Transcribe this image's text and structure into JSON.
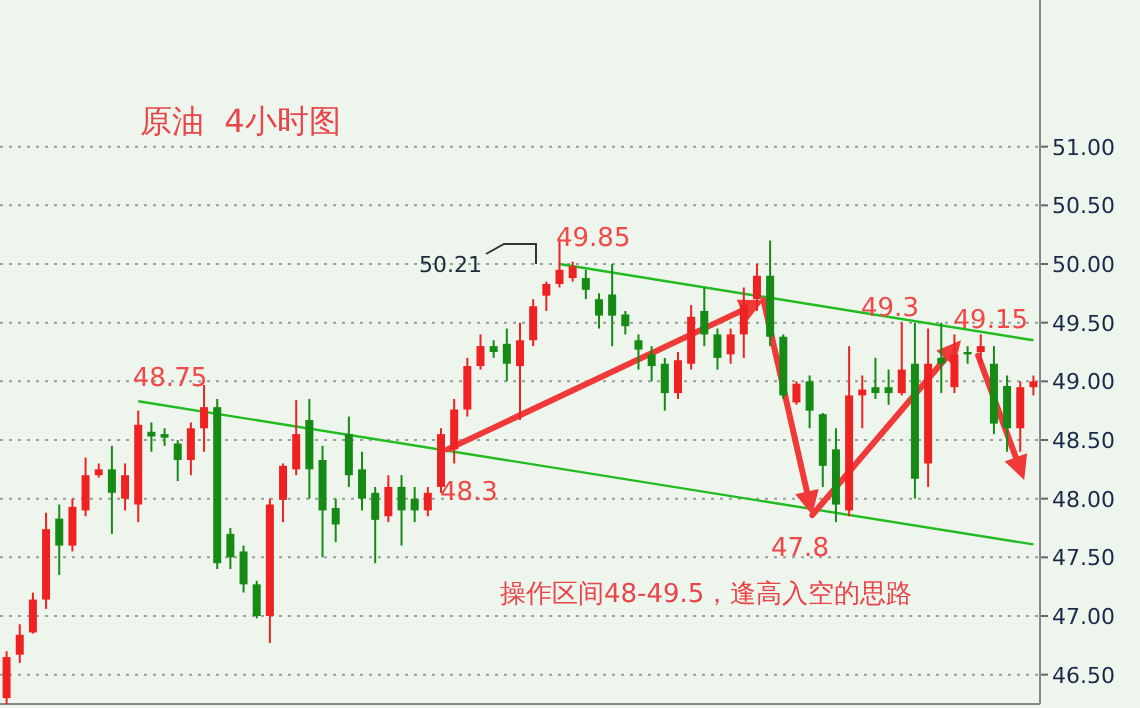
{
  "chart_data": {
    "type": "candlestick",
    "title": "原油  4小时图",
    "categories": [
      null,
      null,
      null,
      null,
      null,
      null,
      null,
      null,
      null,
      null,
      null,
      null,
      null,
      null,
      null,
      null,
      null,
      null,
      null,
      null,
      null,
      null,
      null,
      null,
      null,
      null,
      null,
      null,
      null,
      null,
      null,
      null,
      null,
      null,
      null,
      null,
      null,
      null,
      null,
      null,
      null,
      null,
      null,
      null,
      null,
      null,
      null,
      null,
      null,
      null,
      null,
      null,
      null,
      null,
      null,
      null,
      null,
      null,
      null,
      null,
      null,
      null,
      null,
      null,
      null,
      null,
      null,
      null,
      null,
      null,
      null,
      null,
      null,
      null,
      null,
      null,
      null,
      null,
      null
    ],
    "ohlc": [
      [
        46.3,
        46.7,
        46.25,
        46.65
      ],
      [
        46.67,
        46.93,
        46.6,
        46.84
      ],
      [
        46.86,
        47.2,
        46.85,
        47.14
      ],
      [
        47.14,
        47.88,
        47.06,
        47.74
      ],
      [
        47.83,
        47.95,
        47.35,
        47.6
      ],
      [
        47.6,
        48.0,
        47.55,
        47.93
      ],
      [
        47.9,
        48.35,
        47.85,
        48.2
      ],
      [
        48.2,
        48.3,
        48.18,
        48.25
      ],
      [
        48.25,
        48.45,
        47.7,
        48.05
      ],
      [
        48.0,
        48.3,
        47.9,
        48.2
      ],
      [
        47.95,
        48.75,
        47.8,
        48.63
      ],
      [
        48.57,
        48.65,
        48.4,
        48.53
      ],
      [
        48.55,
        48.6,
        48.45,
        48.52
      ],
      [
        48.47,
        48.5,
        48.15,
        48.33
      ],
      [
        48.33,
        48.65,
        48.2,
        48.6
      ],
      [
        48.6,
        48.97,
        48.4,
        48.78
      ],
      [
        48.78,
        48.85,
        47.4,
        47.45
      ],
      [
        47.7,
        47.75,
        47.4,
        47.5
      ],
      [
        47.55,
        47.6,
        47.2,
        47.27
      ],
      [
        47.27,
        47.3,
        46.98,
        47.0
      ],
      [
        47.0,
        48.0,
        46.77,
        47.95
      ],
      [
        47.99,
        48.3,
        47.8,
        48.28
      ],
      [
        48.25,
        48.84,
        48.2,
        48.55
      ],
      [
        48.67,
        48.85,
        48.0,
        48.25
      ],
      [
        48.33,
        48.45,
        47.5,
        47.9
      ],
      [
        47.92,
        48.0,
        47.63,
        47.78
      ],
      [
        48.55,
        48.7,
        48.1,
        48.2
      ],
      [
        48.25,
        48.4,
        47.9,
        48.0
      ],
      [
        48.05,
        48.1,
        47.45,
        47.82
      ],
      [
        47.85,
        48.2,
        47.8,
        48.1
      ],
      [
        48.1,
        48.2,
        47.6,
        47.9
      ],
      [
        48.0,
        48.1,
        47.8,
        47.9
      ],
      [
        47.9,
        48.1,
        47.85,
        48.05
      ],
      [
        48.1,
        48.6,
        48.05,
        48.55
      ],
      [
        48.42,
        48.85,
        48.3,
        48.76
      ],
      [
        48.76,
        49.2,
        48.7,
        49.13
      ],
      [
        49.13,
        49.4,
        49.1,
        49.3
      ],
      [
        49.3,
        49.35,
        49.2,
        49.25
      ],
      [
        49.32,
        49.45,
        49.0,
        49.15
      ],
      [
        49.13,
        49.5,
        48.67,
        49.35
      ],
      [
        49.35,
        49.7,
        49.3,
        49.64
      ],
      [
        49.73,
        49.85,
        49.6,
        49.83
      ],
      [
        49.83,
        50.21,
        49.8,
        49.95
      ],
      [
        49.88,
        50.02,
        49.85,
        49.98
      ],
      [
        49.88,
        49.95,
        49.7,
        49.78
      ],
      [
        49.7,
        49.75,
        49.45,
        49.56
      ],
      [
        49.74,
        50.0,
        49.3,
        49.56
      ],
      [
        49.57,
        49.6,
        49.4,
        49.47
      ],
      [
        49.35,
        49.4,
        49.1,
        49.27
      ],
      [
        49.23,
        49.3,
        49.0,
        49.13
      ],
      [
        49.15,
        49.2,
        48.75,
        48.9
      ],
      [
        48.9,
        49.25,
        48.85,
        49.18
      ],
      [
        49.15,
        49.65,
        49.1,
        49.55
      ],
      [
        49.6,
        49.8,
        49.3,
        49.4
      ],
      [
        49.4,
        49.45,
        49.1,
        49.2
      ],
      [
        49.23,
        49.45,
        49.15,
        49.4
      ],
      [
        49.4,
        49.8,
        49.2,
        49.65
      ],
      [
        49.7,
        50.0,
        49.6,
        49.9
      ],
      [
        49.9,
        50.2,
        49.3,
        49.38
      ],
      [
        49.38,
        49.4,
        48.85,
        48.88
      ],
      [
        48.82,
        49.0,
        48.8,
        48.98
      ],
      [
        49.0,
        49.05,
        48.6,
        48.75
      ],
      [
        48.72,
        48.73,
        48.1,
        48.28
      ],
      [
        48.42,
        48.6,
        47.8,
        47.95
      ],
      [
        47.9,
        49.3,
        47.85,
        48.88
      ],
      [
        48.88,
        49.05,
        48.6,
        48.93
      ],
      [
        48.95,
        49.2,
        48.85,
        48.9
      ],
      [
        48.95,
        49.1,
        48.8,
        48.9
      ],
      [
        48.9,
        49.5,
        48.88,
        49.1
      ],
      [
        49.15,
        49.5,
        48.0,
        48.17
      ],
      [
        48.3,
        49.45,
        48.1,
        49.15
      ],
      [
        49.2,
        49.5,
        48.9,
        49.15
      ],
      [
        48.95,
        49.4,
        48.9,
        49.23
      ],
      [
        49.25,
        49.3,
        49.15,
        49.23
      ],
      [
        49.25,
        49.4,
        49.15,
        49.3
      ],
      [
        49.15,
        49.3,
        48.55,
        48.64
      ],
      [
        48.96,
        49.05,
        48.4,
        48.6
      ],
      [
        48.6,
        49.0,
        48.4,
        48.95
      ],
      [
        48.95,
        49.05,
        48.88,
        49.0
      ]
    ],
    "series": [
      {
        "type": "line",
        "color": "#22bb22",
        "values": [
          null,
          null,
          null,
          null,
          null,
          null,
          null,
          null,
          null,
          null,
          48.83,
          null,
          null,
          null,
          null,
          null,
          null,
          null,
          null,
          null,
          null,
          null,
          null,
          null,
          null,
          null,
          null,
          null,
          null,
          null,
          null,
          null,
          null,
          null,
          null,
          null,
          null,
          null,
          null,
          null,
          null,
          null,
          null,
          null,
          null,
          null,
          null,
          null,
          null,
          null,
          null,
          null,
          null,
          null,
          null,
          null,
          null,
          null,
          null,
          null,
          null,
          null,
          null,
          null,
          null,
          null,
          null,
          null,
          null,
          null,
          null,
          null,
          null,
          null,
          null,
          null,
          null,
          null,
          47.61
        ]
      },
      {
        "type": "line",
        "color": "#22bb22",
        "values": [
          null,
          null,
          null,
          null,
          null,
          null,
          null,
          null,
          null,
          null,
          null,
          null,
          null,
          null,
          null,
          null,
          null,
          null,
          null,
          null,
          null,
          null,
          null,
          null,
          null,
          null,
          null,
          null,
          null,
          null,
          null,
          null,
          null,
          null,
          null,
          null,
          null,
          null,
          null,
          null,
          null,
          null,
          50.0,
          null,
          null,
          null,
          null,
          null,
          null,
          null,
          null,
          null,
          null,
          null,
          null,
          null,
          null,
          null,
          null,
          null,
          null,
          null,
          null,
          null,
          null,
          null,
          null,
          null,
          null,
          null,
          null,
          null,
          null,
          null,
          null,
          null,
          null,
          null,
          49.35
        ]
      }
    ],
    "ylim": [
      46.25,
      52.25
    ],
    "yticks": [
      {
        "value": 46.5,
        "label": "46.50"
      },
      {
        "value": 47,
        "label": "47.00"
      },
      {
        "value": 47.5,
        "label": "47.50"
      },
      {
        "value": 48,
        "label": "48.00"
      },
      {
        "value": 48.5,
        "label": "48.50"
      },
      {
        "value": 49,
        "label": "49.00"
      },
      {
        "value": 49.5,
        "label": "49.50"
      },
      {
        "value": 50,
        "label": "50.00"
      },
      {
        "value": 50.5,
        "label": "50.50"
      },
      {
        "value": 51,
        "label": "51.00"
      }
    ],
    "tick_labels": "y",
    "grid": "y",
    "annotations": [
      "48.75",
      "50.21",
      "49.85",
      "48.3",
      "47.8",
      "49.3",
      "49.15",
      "操作区间48-49.5，逢高入空的思路"
    ]
  }
}
